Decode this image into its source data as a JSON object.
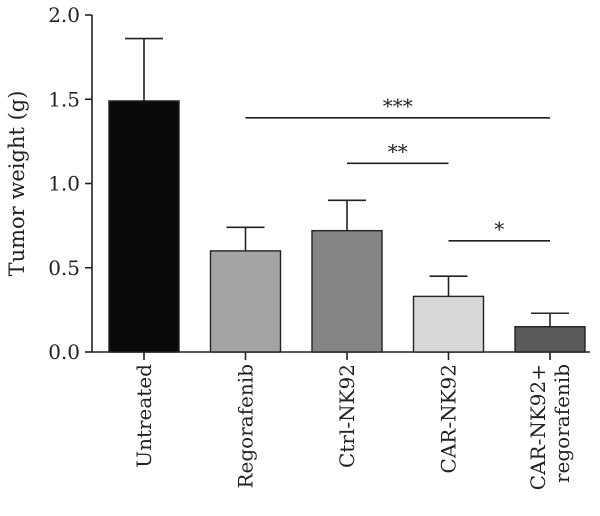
{
  "chart_data": {
    "type": "bar",
    "title": "",
    "xlabel": "",
    "ylabel": "Tumor weight (g)",
    "ylim": [
      0,
      2.0
    ],
    "yticks": [
      "0.0",
      "0.5",
      "1.0",
      "1.5",
      "2.0"
    ],
    "categories": [
      [
        "Untreated"
      ],
      [
        "Regorafenib"
      ],
      [
        "Ctrl-NK92"
      ],
      [
        "CAR-NK92"
      ],
      [
        "CAR-NK92+",
        "regorafenib"
      ]
    ],
    "values": [
      1.49,
      0.6,
      0.72,
      0.33,
      0.15
    ],
    "errors": [
      0.37,
      0.14,
      0.18,
      0.12,
      0.08
    ],
    "bar_colors": [
      "#0a0a0a",
      "#a4a4a4",
      "#858585",
      "#d8d8d8",
      "#5a5a5a"
    ],
    "significance": [
      {
        "from": 1,
        "to": 4,
        "label": "***",
        "y": 1.39
      },
      {
        "from": 2,
        "to": 3,
        "label": "**",
        "y": 1.12
      },
      {
        "from": 3,
        "to": 4,
        "label": "*",
        "y": 0.66
      }
    ],
    "grid": false,
    "legend": "none"
  }
}
